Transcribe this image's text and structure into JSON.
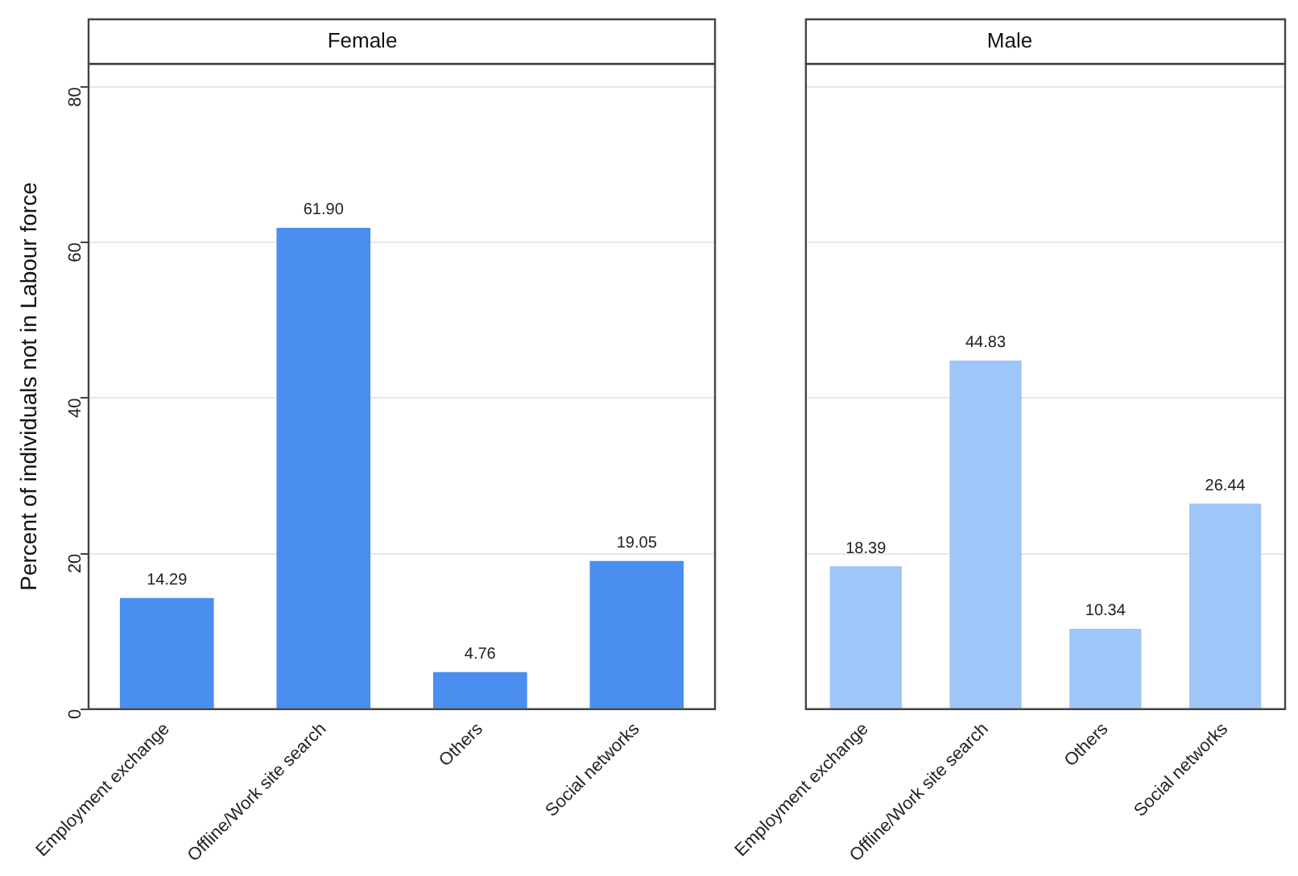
{
  "chart_data": [
    {
      "type": "bar",
      "title": "Female",
      "ylabel": "Percent of individuals not in Labour force",
      "categories": [
        "Employment exchange",
        "Offline/Work site search",
        "Others",
        "Social networks"
      ],
      "values": [
        14.29,
        61.9,
        4.76,
        19.05
      ],
      "value_labels": [
        "14.29",
        "61.90",
        "4.76",
        "19.05"
      ],
      "color": "#4a8ef0",
      "ylim": [
        0,
        83
      ],
      "yticks": [
        0,
        20,
        40,
        60,
        80
      ],
      "grid": "y"
    },
    {
      "type": "bar",
      "title": "Male",
      "categories": [
        "Employment exchange",
        "Offline/Work site search",
        "Others",
        "Social networks"
      ],
      "values": [
        18.39,
        44.83,
        10.34,
        26.44
      ],
      "value_labels": [
        "18.39",
        "44.83",
        "10.34",
        "26.44"
      ],
      "color": "#9fc6f8",
      "ylim": [
        0,
        83
      ],
      "yticks": [
        0,
        20,
        40,
        60,
        80
      ],
      "grid": "y",
      "tick_labels": "x"
    }
  ]
}
